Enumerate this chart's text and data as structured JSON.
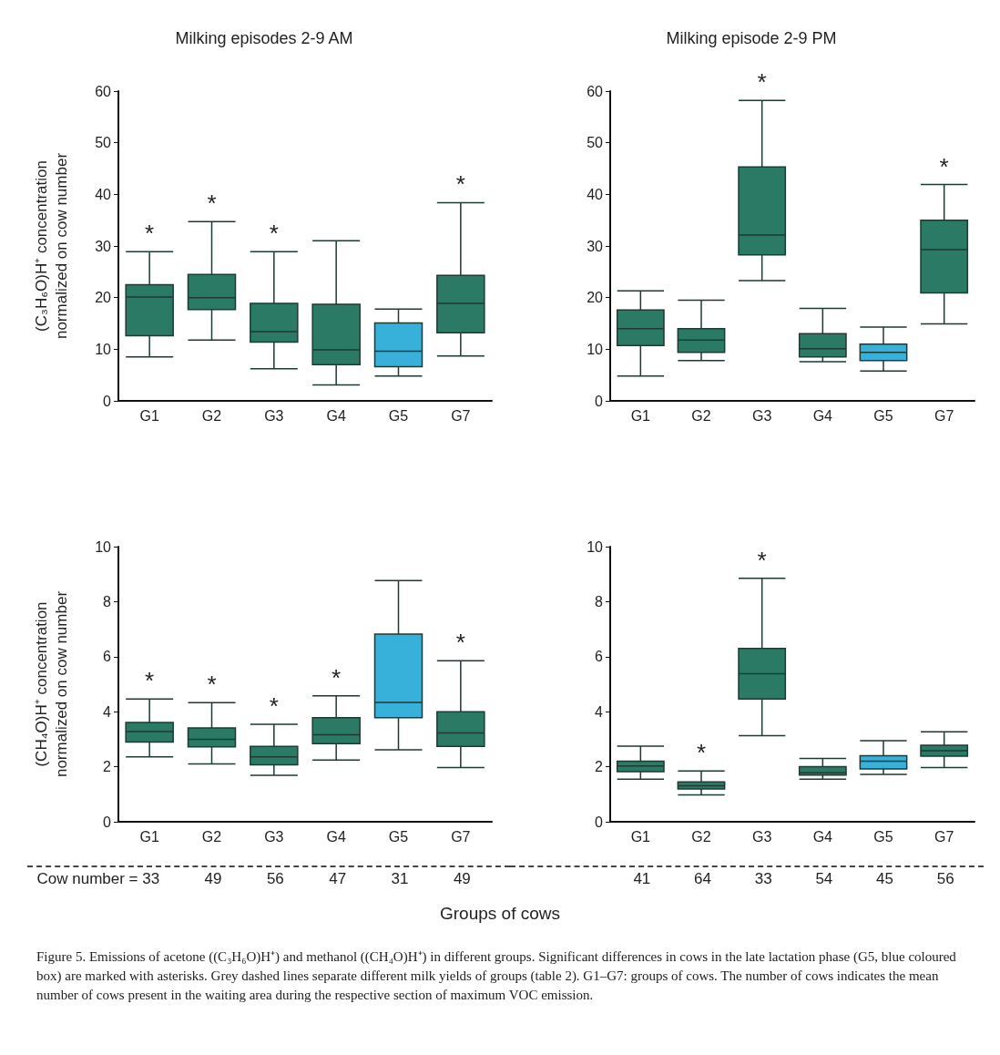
{
  "chart_data": [
    {
      "type": "box",
      "title": "Milking episodes 2-9 AM",
      "ylabel": "(C₃H₆O)H⁺ concentration\nnormalized on cow number",
      "categories": [
        "G1",
        "G2",
        "G3",
        "G4",
        "G5",
        "G7"
      ],
      "colors": [
        "#2b7a66",
        "#2b7a66",
        "#2b7a66",
        "#2b7a66",
        "#38b1da",
        "#2b7a66"
      ],
      "ylim": [
        0,
        60
      ],
      "yticks": [
        0,
        10,
        20,
        30,
        40,
        50,
        60
      ],
      "grid": false,
      "boxes": [
        {
          "low": 8.5,
          "q1": 12.6,
          "median": 20.1,
          "q3": 22.5,
          "high": 28.9
        },
        {
          "low": 11.8,
          "q1": 17.7,
          "median": 20.0,
          "q3": 24.5,
          "high": 34.7
        },
        {
          "low": 6.2,
          "q1": 11.4,
          "median": 13.4,
          "q3": 18.9,
          "high": 28.9
        },
        {
          "low": 3.1,
          "q1": 7.0,
          "median": 9.9,
          "q3": 18.7,
          "high": 31.0
        },
        {
          "low": 4.8,
          "q1": 6.6,
          "median": 9.6,
          "q3": 15.1,
          "high": 17.8
        },
        {
          "low": 8.7,
          "q1": 13.2,
          "median": 18.9,
          "q3": 24.3,
          "high": 38.4
        }
      ],
      "annotations": [
        {
          "text": "*",
          "x": "G1",
          "y": 28.9
        },
        {
          "text": "*",
          "x": "G2",
          "y": 34.7
        },
        {
          "text": "*",
          "x": "G3",
          "y": 28.9
        },
        {
          "text": "*",
          "x": "G7",
          "y": 38.4
        }
      ]
    },
    {
      "type": "box",
      "title": "Milking episode 2-9 PM",
      "categories": [
        "G1",
        "G2",
        "G3",
        "G4",
        "G5",
        "G7"
      ],
      "colors": [
        "#2b7a66",
        "#2b7a66",
        "#2b7a66",
        "#2b7a66",
        "#38b1da",
        "#2b7a66"
      ],
      "ylim": [
        0,
        60
      ],
      "yticks": [
        0,
        10,
        20,
        30,
        40,
        50,
        60
      ],
      "grid": false,
      "boxes": [
        {
          "low": 4.8,
          "q1": 10.7,
          "median": 14.0,
          "q3": 17.6,
          "high": 21.3
        },
        {
          "low": 7.8,
          "q1": 9.4,
          "median": 11.8,
          "q3": 14.0,
          "high": 19.5
        },
        {
          "low": 23.3,
          "q1": 28.3,
          "median": 32.1,
          "q3": 45.3,
          "high": 58.2
        },
        {
          "low": 7.6,
          "q1": 8.5,
          "median": 10.1,
          "q3": 13.0,
          "high": 17.9
        },
        {
          "low": 5.8,
          "q1": 7.8,
          "median": 9.4,
          "q3": 11.0,
          "high": 14.3
        },
        {
          "low": 14.9,
          "q1": 20.9,
          "median": 29.3,
          "q3": 35.0,
          "high": 41.9
        }
      ],
      "annotations": [
        {
          "text": "*",
          "x": "G3",
          "y": 58.2
        },
        {
          "text": "*",
          "x": "G7",
          "y": 41.9
        }
      ]
    },
    {
      "type": "box",
      "ylabel": "(CH₄O)H⁺ concentration\nnormalized on cow number",
      "xlabel": "Groups of cows",
      "categories": [
        "G1",
        "G2",
        "G3",
        "G4",
        "G5",
        "G7"
      ],
      "colors": [
        "#2b7a66",
        "#2b7a66",
        "#2b7a66",
        "#2b7a66",
        "#38b1da",
        "#2b7a66"
      ],
      "ylim": [
        0,
        10
      ],
      "yticks": [
        0,
        2,
        4,
        6,
        8,
        10
      ],
      "grid": false,
      "boxes": [
        {
          "low": 2.36,
          "q1": 2.9,
          "median": 3.28,
          "q3": 3.61,
          "high": 4.46
        },
        {
          "low": 2.1,
          "q1": 2.72,
          "median": 3.0,
          "q3": 3.41,
          "high": 4.33
        },
        {
          "low": 1.69,
          "q1": 2.07,
          "median": 2.36,
          "q3": 2.74,
          "high": 3.54
        },
        {
          "low": 2.24,
          "q1": 2.84,
          "median": 3.16,
          "q3": 3.78,
          "high": 4.58
        },
        {
          "low": 2.62,
          "q1": 3.78,
          "median": 4.34,
          "q3": 6.82,
          "high": 8.77
        },
        {
          "low": 1.97,
          "q1": 2.74,
          "median": 3.23,
          "q3": 4.0,
          "high": 5.85
        }
      ],
      "annotations": [
        {
          "text": "*",
          "x": "G1",
          "y": 4.46
        },
        {
          "text": "*",
          "x": "G2",
          "y": 4.33
        },
        {
          "text": "*",
          "x": "G3",
          "y": 3.54
        },
        {
          "text": "*",
          "x": "G4",
          "y": 4.58
        },
        {
          "text": "*",
          "x": "G7",
          "y": 5.85
        },
        "Cow number = 33",
        "49",
        "56",
        "47",
        "31",
        "49"
      ]
    },
    {
      "type": "box",
      "categories": [
        "G1",
        "G2",
        "G3",
        "G4",
        "G5",
        "G7"
      ],
      "colors": [
        "#2b7a66",
        "#2b7a66",
        "#2b7a66",
        "#2b7a66",
        "#38b1da",
        "#2b7a66"
      ],
      "ylim": [
        0,
        10
      ],
      "yticks": [
        0,
        2,
        4,
        6,
        8,
        10
      ],
      "grid": false,
      "boxes": [
        {
          "low": 1.55,
          "q1": 1.82,
          "median": 2.03,
          "q3": 2.2,
          "high": 2.75
        },
        {
          "low": 0.98,
          "q1": 1.19,
          "median": 1.31,
          "q3": 1.45,
          "high": 1.85
        },
        {
          "low": 3.13,
          "q1": 4.46,
          "median": 5.38,
          "q3": 6.3,
          "high": 8.85
        },
        {
          "low": 1.55,
          "q1": 1.7,
          "median": 1.78,
          "q3": 2.0,
          "high": 2.3
        },
        {
          "low": 1.72,
          "q1": 1.92,
          "median": 2.2,
          "q3": 2.4,
          "high": 2.95
        },
        {
          "low": 1.97,
          "q1": 2.38,
          "median": 2.58,
          "q3": 2.78,
          "high": 3.27
        }
      ],
      "annotations": [
        {
          "text": "*",
          "x": "G2",
          "y": 1.85
        },
        {
          "text": "*",
          "x": "G3",
          "y": 8.85
        },
        "41",
        "64",
        "33",
        "54",
        "45",
        "56",
        "Figure 5. Emissions of acetone ((C₃H₆O)H⁺) and methanol ((CH₄O)H⁺) in different groups. Significant differences in cows in the late lactation phase (G5, blue coloured box) are marked with asterisks. Grey dashed lines separate different milk yields of groups (table 2). G1–G7: groups of cows. The number of cows indicates the mean number of cows present in the waiting area during the respective section of maximum VOC emission."
      ]
    }
  ]
}
